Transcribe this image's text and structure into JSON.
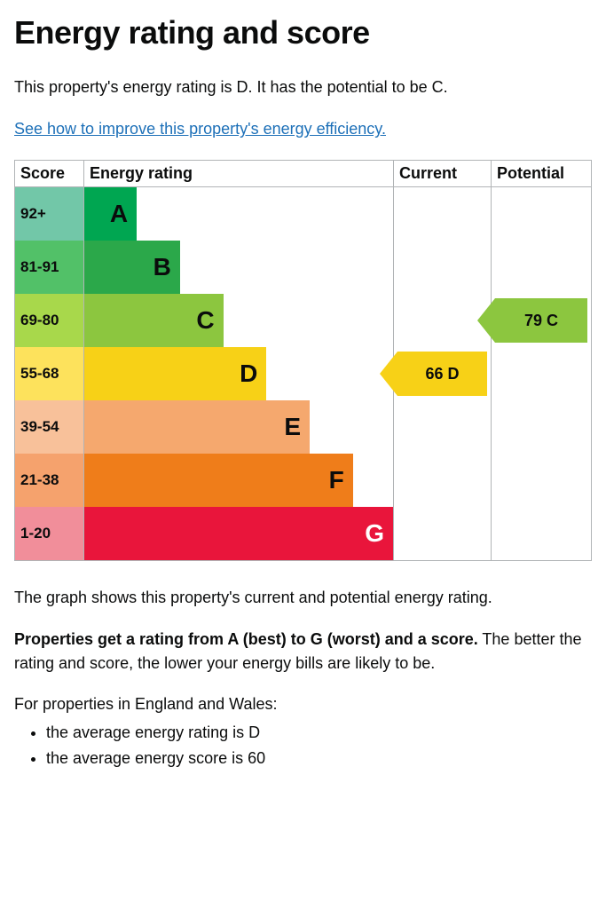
{
  "title": "Energy rating and score",
  "intro": "This property's energy rating is D. It has the potential to be C.",
  "link_text": "See how to improve this property's energy efficiency",
  "headers": {
    "score": "Score",
    "rating": "Energy rating",
    "current": "Current",
    "potential": "Potential"
  },
  "bands": [
    {
      "score": "92+",
      "letter": "A",
      "bar_pct": 17,
      "score_bg": "#72c7a8",
      "bar_bg": "#00a651",
      "text": "#0b0c0c"
    },
    {
      "score": "81-91",
      "letter": "B",
      "bar_pct": 31,
      "score_bg": "#52c168",
      "bar_bg": "#2ba84a",
      "text": "#0b0c0c"
    },
    {
      "score": "69-80",
      "letter": "C",
      "bar_pct": 45,
      "score_bg": "#a8d84b",
      "bar_bg": "#8cc63f",
      "text": "#0b0c0c"
    },
    {
      "score": "55-68",
      "letter": "D",
      "bar_pct": 59,
      "score_bg": "#fde25c",
      "bar_bg": "#f7d117",
      "text": "#0b0c0c"
    },
    {
      "score": "39-54",
      "letter": "E",
      "bar_pct": 73,
      "score_bg": "#f8c19a",
      "bar_bg": "#f5a86e",
      "text": "#0b0c0c"
    },
    {
      "score": "21-38",
      "letter": "F",
      "bar_pct": 87,
      "score_bg": "#f5a26d",
      "bar_bg": "#ef7d1a",
      "text": "#0b0c0c"
    },
    {
      "score": "1-20",
      "letter": "G",
      "bar_pct": 100,
      "score_bg": "#f18e9a",
      "bar_bg": "#e9153b",
      "text": "#ffffff"
    }
  ],
  "current_marker": {
    "row": 3,
    "label": "66 D",
    "bg": "#f7d117",
    "text": "#0b0c0c"
  },
  "potential_marker": {
    "row": 2,
    "label": "79 C",
    "bg": "#8cc63f",
    "text": "#0b0c0c"
  },
  "caption": "The graph shows this property's current and potential energy rating.",
  "explain_bold": "Properties get a rating from A (best) to G (worst) and a score.",
  "explain_rest": " The better the rating and score, the lower your energy bills are likely to be.",
  "list_intro": "For properties in England and Wales:",
  "list_items": [
    "the average energy rating is D",
    "the average energy score is 60"
  ]
}
